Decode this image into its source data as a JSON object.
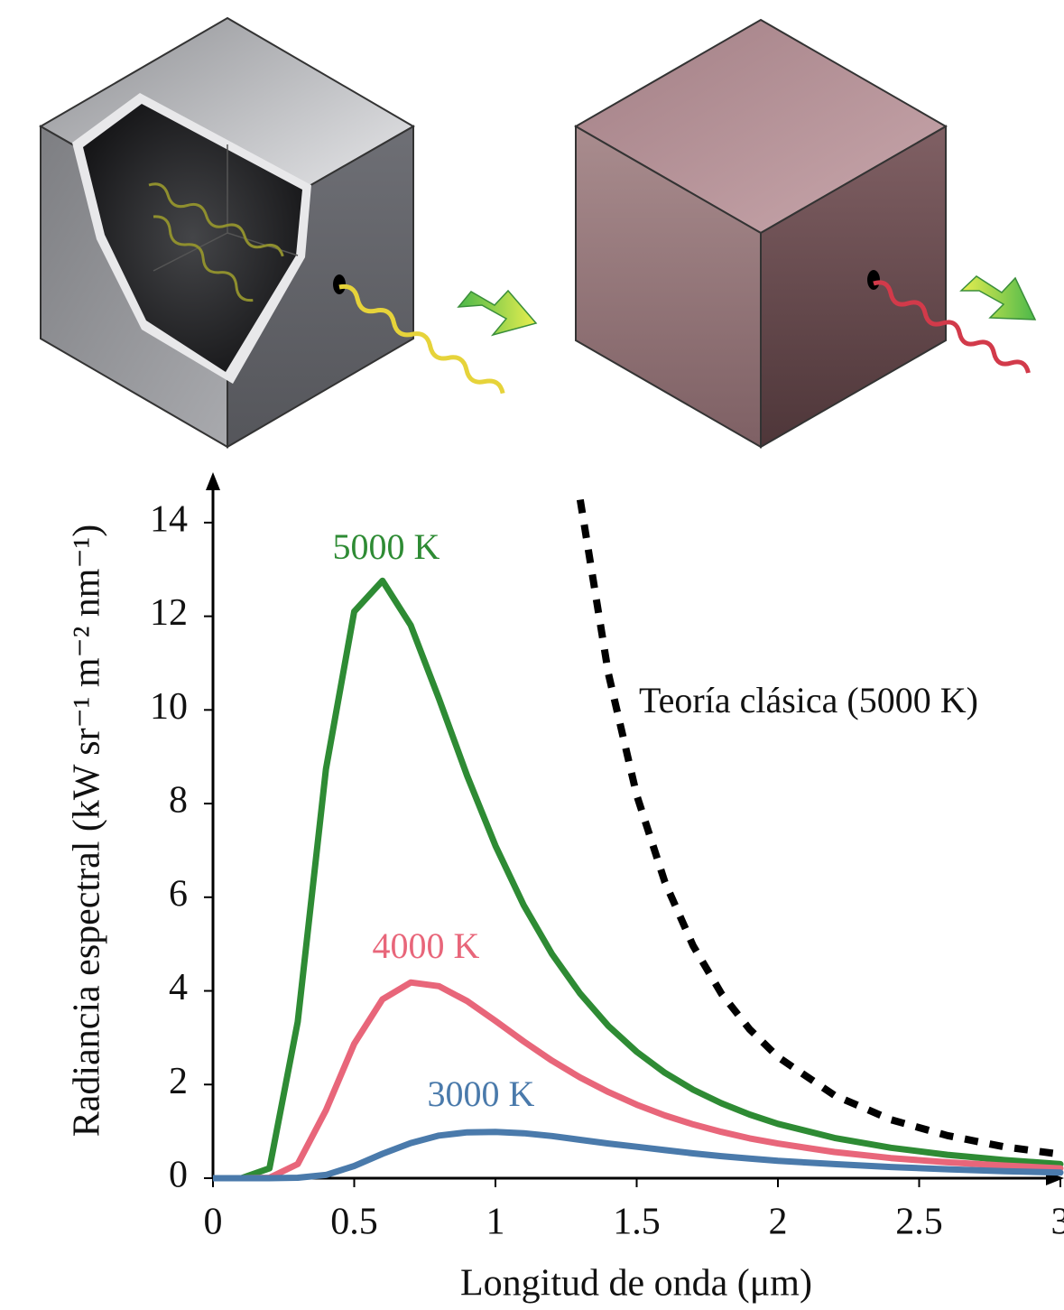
{
  "chart_data": {
    "type": "line",
    "xlabel": "Longitud de onda (μm)",
    "ylabel": "Radiancia espectral (kW sr⁻¹ m⁻² nm⁻¹)",
    "x": [
      0,
      0.1,
      0.2,
      0.3,
      0.4,
      0.5,
      0.6,
      0.7,
      0.8,
      0.9,
      1.0,
      1.1,
      1.2,
      1.3,
      1.4,
      1.5,
      1.6,
      1.7,
      1.8,
      1.9,
      2.0,
      2.2,
      2.4,
      2.6,
      2.8,
      3.0
    ],
    "series": [
      {
        "name": "5000 K",
        "color": "#2e8b34",
        "style": "solid",
        "values": [
          0,
          0,
          0.21,
          3.34,
          8.74,
          12.1,
          12.76,
          11.81,
          10.24,
          8.59,
          7.1,
          5.83,
          4.79,
          3.94,
          3.25,
          2.7,
          2.25,
          1.89,
          1.6,
          1.36,
          1.16,
          0.86,
          0.65,
          0.5,
          0.39,
          0.3
        ]
      },
      {
        "name": "4000 K",
        "color": "#e8667a",
        "style": "solid",
        "values": [
          0,
          0,
          0.01,
          0.3,
          1.45,
          2.87,
          3.82,
          4.18,
          4.1,
          3.78,
          3.36,
          2.92,
          2.51,
          2.15,
          1.84,
          1.57,
          1.34,
          1.15,
          0.99,
          0.85,
          0.74,
          0.56,
          0.43,
          0.34,
          0.27,
          0.21
        ]
      },
      {
        "name": "3000 K",
        "color": "#4a7aab",
        "style": "solid",
        "values": [
          0,
          0,
          0,
          0.01,
          0.07,
          0.26,
          0.52,
          0.75,
          0.91,
          0.98,
          0.99,
          0.96,
          0.9,
          0.82,
          0.74,
          0.67,
          0.6,
          0.53,
          0.47,
          0.42,
          0.37,
          0.3,
          0.24,
          0.19,
          0.15,
          0.12
        ]
      },
      {
        "name": "Teoría clásica (5000 K)",
        "color": "#000000",
        "style": "dashed",
        "values": [
          null,
          null,
          null,
          null,
          null,
          null,
          null,
          null,
          null,
          null,
          null,
          null,
          null,
          14.49,
          10.77,
          8.18,
          6.32,
          4.96,
          3.94,
          3.18,
          2.59,
          1.77,
          1.25,
          0.91,
          0.67,
          0.51
        ]
      }
    ],
    "xlim": [
      0,
      3
    ],
    "xticks": [
      0,
      0.5,
      1,
      1.5,
      2,
      2.5,
      3
    ],
    "ylim": [
      0,
      15
    ],
    "yticks": [
      0,
      2,
      4,
      6,
      8,
      10,
      12,
      14
    ],
    "grid": false
  }
}
